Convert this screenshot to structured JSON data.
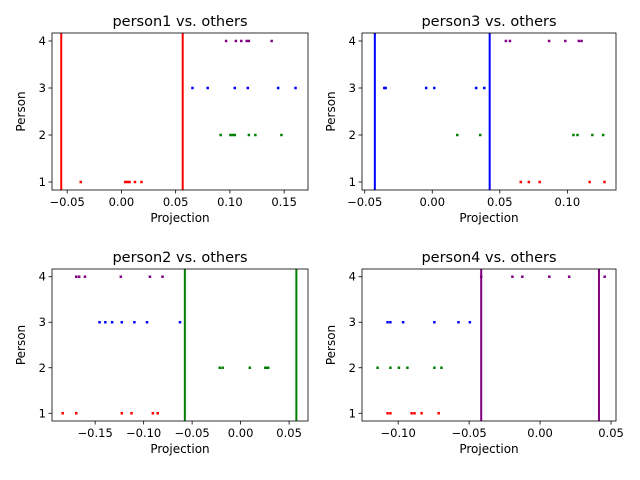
{
  "chart_data": [
    {
      "type": "scatter",
      "title": "person1 vs. others",
      "xlabel": "Projection",
      "ylabel": "Person",
      "xlim": [
        -0.064,
        0.172
      ],
      "ylim": [
        0.83,
        4.17
      ],
      "xticks": [
        -0.05,
        0.0,
        0.05,
        0.1,
        0.15
      ],
      "xtick_labels": [
        "−0.05",
        "0.00",
        "0.05",
        "0.10",
        "0.15"
      ],
      "yticks": [
        1,
        2,
        3,
        4
      ],
      "ytick_labels": [
        "1",
        "2",
        "3",
        "4"
      ],
      "threshold_lines": [
        -0.0555,
        0.0565
      ],
      "threshold_color": "#ff0000",
      "series": [
        {
          "person": 1,
          "color": "#ff0000",
          "x": [
            -0.0375,
            0.0035,
            0.0055,
            0.0075,
            0.0125,
            0.0185
          ]
        },
        {
          "person": 2,
          "color": "#008000",
          "x": [
            0.0915,
            0.1005,
            0.1025,
            0.1045,
            0.1175,
            0.1235,
            0.1475
          ]
        },
        {
          "person": 3,
          "color": "#0000ff",
          "x": [
            0.0655,
            0.0795,
            0.1045,
            0.1165,
            0.1445,
            0.1605
          ]
        },
        {
          "person": 4,
          "color": "#800080",
          "x": [
            0.0965,
            0.1055,
            0.1105,
            0.1155,
            0.1175,
            0.1385
          ]
        }
      ]
    },
    {
      "type": "scatter",
      "title": "person3 vs. others",
      "xlabel": "Projection",
      "ylabel": "Person",
      "xlim": [
        -0.052,
        0.136
      ],
      "ylim": [
        0.83,
        4.17
      ],
      "xticks": [
        -0.05,
        0.0,
        0.05,
        0.1
      ],
      "xtick_labels": [
        "−0.05",
        "0.00",
        "0.05",
        "0.10"
      ],
      "yticks": [
        1,
        2,
        3,
        4
      ],
      "ytick_labels": [
        "1",
        "2",
        "3",
        "4"
      ],
      "threshold_lines": [
        -0.0425,
        0.0425
      ],
      "threshold_color": "#0000ff",
      "series": [
        {
          "person": 1,
          "color": "#ff0000",
          "x": [
            0.0655,
            0.0715,
            0.0795,
            0.1165,
            0.1275
          ]
        },
        {
          "person": 2,
          "color": "#008000",
          "x": [
            0.0185,
            0.0355,
            0.1045,
            0.1075,
            0.1185,
            0.1265
          ]
        },
        {
          "person": 3,
          "color": "#0000ff",
          "x": [
            -0.0355,
            -0.0345,
            -0.0045,
            0.0015,
            0.0325,
            0.0385
          ]
        },
        {
          "person": 4,
          "color": "#800080",
          "x": [
            0.0545,
            0.0575,
            0.0865,
            0.0985,
            0.1085,
            0.1105
          ]
        }
      ]
    },
    {
      "type": "scatter",
      "title": "person2 vs. others",
      "xlabel": "Projection",
      "ylabel": "Person",
      "xlim": [
        -0.1945,
        0.0695
      ],
      "ylim": [
        0.83,
        4.17
      ],
      "xticks": [
        -0.15,
        -0.1,
        -0.05,
        0.0,
        0.05
      ],
      "xtick_labels": [
        "−0.15",
        "−0.10",
        "−0.05",
        "0.00",
        "0.05"
      ],
      "yticks": [
        1,
        2,
        3,
        4
      ],
      "ytick_labels": [
        "1",
        "2",
        "3",
        "4"
      ],
      "threshold_lines": [
        -0.0575,
        0.0575
      ],
      "threshold_color": "#008000",
      "series": [
        {
          "person": 1,
          "color": "#ff0000",
          "x": [
            -0.1835,
            -0.1695,
            -0.1225,
            -0.1125,
            -0.0905,
            -0.0855
          ]
        },
        {
          "person": 2,
          "color": "#008000",
          "x": [
            -0.0215,
            -0.0185,
            0.0095,
            0.0255,
            0.0265,
            0.0285
          ]
        },
        {
          "person": 3,
          "color": "#0000ff",
          "x": [
            -0.1455,
            -0.1395,
            -0.1325,
            -0.1225,
            -0.1095,
            -0.0965,
            -0.0625
          ]
        },
        {
          "person": 4,
          "color": "#800080",
          "x": [
            -0.1695,
            -0.1665,
            -0.1605,
            -0.1235,
            -0.0935,
            -0.0805
          ]
        }
      ]
    },
    {
      "type": "scatter",
      "title": "person4 vs. others",
      "xlabel": "Projection",
      "ylabel": "Person",
      "xlim": [
        -0.1255,
        0.0535
      ],
      "ylim": [
        0.83,
        4.17
      ],
      "xticks": [
        -0.1,
        -0.05,
        0.0,
        0.05
      ],
      "xtick_labels": [
        "−0.10",
        "−0.05",
        "0.00",
        "0.05"
      ],
      "yticks": [
        1,
        2,
        3,
        4
      ],
      "ytick_labels": [
        "1",
        "2",
        "3",
        "4"
      ],
      "threshold_lines": [
        -0.0415,
        0.0415
      ],
      "threshold_color": "#800080",
      "series": [
        {
          "person": 1,
          "color": "#ff0000",
          "x": [
            -0.1075,
            -0.1055,
            -0.0905,
            -0.0885,
            -0.0835,
            -0.0715
          ]
        },
        {
          "person": 2,
          "color": "#008000",
          "x": [
            -0.1145,
            -0.1055,
            -0.0995,
            -0.0935,
            -0.0745,
            -0.0695
          ]
        },
        {
          "person": 3,
          "color": "#0000ff",
          "x": [
            -0.1075,
            -0.1055,
            -0.0965,
            -0.0745,
            -0.0575,
            -0.0495
          ]
        },
        {
          "person": 4,
          "color": "#800080",
          "x": [
            -0.0415,
            -0.0195,
            -0.0125,
            0.0065,
            0.0205,
            0.0455
          ]
        }
      ]
    }
  ]
}
